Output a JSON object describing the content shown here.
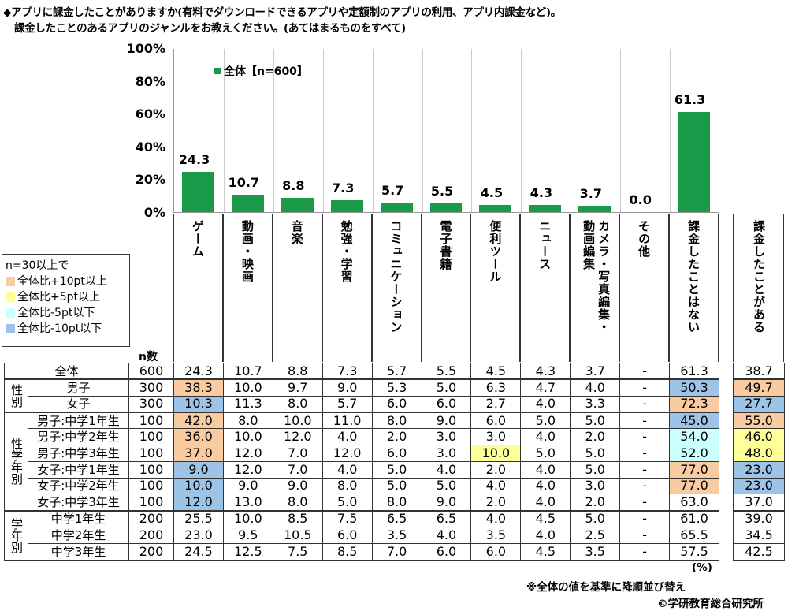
{
  "title_lines": [
    "◆アプリに課金したことがありますか(有料でダウンロードできるアプリや定額制のアプリの利用、アプリ内課金など)。",
    "課金したことのあるアプリのジャンルをお教えください。(あてはまるものをすべて)"
  ],
  "colors": {
    "bar": "#1a9a48",
    "plus10": "#f8cba0",
    "plus5": "#ffff99",
    "minus5": "#ccffff",
    "minus10": "#9dc3e6"
  },
  "chart_data": {
    "type": "bar",
    "categories": [
      "ゲーム",
      "動画・映画",
      "音楽",
      "勉強・学習",
      "コミュニケーション",
      "電子書籍",
      "便利ツール",
      "ニュース",
      "カメラ・写真編集・動画編集",
      "その他",
      "課金したことはない"
    ],
    "category_lines": [
      [
        "ゲーム"
      ],
      [
        "動画・映画"
      ],
      [
        "音楽"
      ],
      [
        "勉強・学習"
      ],
      [
        "コミュニケーション"
      ],
      [
        "電子書籍"
      ],
      [
        "便利ツール"
      ],
      [
        "ニュース"
      ],
      [
        "カメラ・写真編集・",
        "動画編集"
      ],
      [
        "その他"
      ],
      [
        "課金したことはない"
      ]
    ],
    "series": [
      {
        "name": "全体【n=600】",
        "values": [
          24.3,
          10.7,
          8.8,
          7.3,
          5.7,
          5.5,
          4.5,
          4.3,
          3.7,
          0.0,
          61.3
        ]
      }
    ],
    "value_labels": [
      "24.3",
      "10.7",
      "8.8",
      "7.3",
      "5.7",
      "5.5",
      "4.5",
      "4.3",
      "3.7",
      "0.0",
      "61.3"
    ],
    "yticks": [
      "0%",
      "20%",
      "40%",
      "60%",
      "80%",
      "100%"
    ],
    "ylim": [
      0,
      100
    ],
    "legend": "top-left",
    "grid": false
  },
  "legend": {
    "title": "n=30以上で",
    "items": [
      {
        "label": "全体比+10pt以上",
        "key": "o"
      },
      {
        "label": "全体比+5pt以上",
        "key": "y"
      },
      {
        "label": "全体比-5pt以下",
        "key": "c"
      },
      {
        "label": "全体比-10pt以下",
        "key": "b"
      }
    ]
  },
  "n_header": "n数",
  "extra_header": [
    "課金したことがある"
  ],
  "groups": [
    {
      "label": "性別",
      "start": 1,
      "span": 2
    },
    {
      "label": "性学年別",
      "start": 3,
      "span": 6
    },
    {
      "label": "学年別",
      "start": 9,
      "span": 3
    }
  ],
  "rows": [
    {
      "label": "全体",
      "n": "600",
      "values": [
        "24.3",
        "10.7",
        "8.8",
        "7.3",
        "5.7",
        "5.5",
        "4.5",
        "4.3",
        "3.7",
        "-",
        "61.3"
      ],
      "extra": "38.7",
      "hl": {}
    },
    {
      "label": "男子",
      "n": "300",
      "values": [
        "38.3",
        "10.0",
        "9.7",
        "9.0",
        "5.3",
        "5.0",
        "6.3",
        "4.7",
        "4.0",
        "-",
        "50.3"
      ],
      "extra": "49.7",
      "hl": {
        "0": "o",
        "10": "b",
        "x": "o"
      }
    },
    {
      "label": "女子",
      "n": "300",
      "values": [
        "10.3",
        "11.3",
        "8.0",
        "5.7",
        "6.0",
        "6.0",
        "2.7",
        "4.0",
        "3.3",
        "-",
        "72.3"
      ],
      "extra": "27.7",
      "hl": {
        "0": "b",
        "10": "o",
        "x": "b"
      }
    },
    {
      "label": "男子:中学1年生",
      "n": "100",
      "values": [
        "42.0",
        "8.0",
        "10.0",
        "11.0",
        "8.0",
        "9.0",
        "6.0",
        "5.0",
        "5.0",
        "-",
        "45.0"
      ],
      "extra": "55.0",
      "hl": {
        "0": "o",
        "10": "b",
        "x": "o"
      }
    },
    {
      "label": "男子:中学2年生",
      "n": "100",
      "values": [
        "36.0",
        "10.0",
        "12.0",
        "4.0",
        "2.0",
        "3.0",
        "3.0",
        "4.0",
        "2.0",
        "-",
        "54.0"
      ],
      "extra": "46.0",
      "hl": {
        "0": "o",
        "10": "c",
        "x": "y"
      }
    },
    {
      "label": "男子:中学3年生",
      "n": "100",
      "values": [
        "37.0",
        "12.0",
        "7.0",
        "12.0",
        "6.0",
        "3.0",
        "10.0",
        "5.0",
        "5.0",
        "-",
        "52.0"
      ],
      "extra": "48.0",
      "hl": {
        "0": "o",
        "6": "y",
        "10": "c",
        "x": "y"
      }
    },
    {
      "label": "女子:中学1年生",
      "n": "100",
      "values": [
        "9.0",
        "12.0",
        "7.0",
        "4.0",
        "5.0",
        "4.0",
        "2.0",
        "4.0",
        "5.0",
        "-",
        "77.0"
      ],
      "extra": "23.0",
      "hl": {
        "0": "b",
        "10": "o",
        "x": "b"
      }
    },
    {
      "label": "女子:中学2年生",
      "n": "100",
      "values": [
        "10.0",
        "9.0",
        "9.0",
        "8.0",
        "5.0",
        "5.0",
        "4.0",
        "4.0",
        "3.0",
        "-",
        "77.0"
      ],
      "extra": "23.0",
      "hl": {
        "0": "b",
        "10": "o",
        "x": "b"
      }
    },
    {
      "label": "女子:中学3年生",
      "n": "100",
      "values": [
        "12.0",
        "13.0",
        "8.0",
        "5.0",
        "8.0",
        "9.0",
        "2.0",
        "4.0",
        "2.0",
        "-",
        "63.0"
      ],
      "extra": "37.0",
      "hl": {
        "0": "b"
      }
    },
    {
      "label": "中学1年生",
      "n": "200",
      "values": [
        "25.5",
        "10.0",
        "8.5",
        "7.5",
        "6.5",
        "6.5",
        "4.0",
        "4.5",
        "5.0",
        "-",
        "61.0"
      ],
      "extra": "39.0",
      "hl": {}
    },
    {
      "label": "中学2年生",
      "n": "200",
      "values": [
        "23.0",
        "9.5",
        "10.5",
        "6.0",
        "3.5",
        "4.0",
        "3.5",
        "4.0",
        "2.5",
        "-",
        "65.5"
      ],
      "extra": "34.5",
      "hl": {}
    },
    {
      "label": "中学3年生",
      "n": "200",
      "values": [
        "24.5",
        "12.5",
        "7.5",
        "8.5",
        "7.0",
        "6.0",
        "6.0",
        "4.5",
        "3.5",
        "-",
        "57.5"
      ],
      "extra": "42.5",
      "hl": {}
    }
  ],
  "unit_note": "(%)",
  "sort_note": "※全体の値を基準に降順並び替え",
  "copyright": "©学研教育総合研究所"
}
